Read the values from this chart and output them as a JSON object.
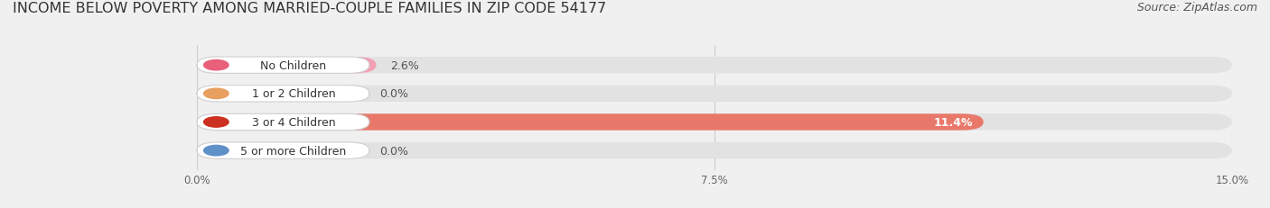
{
  "title": "INCOME BELOW POVERTY AMONG MARRIED-COUPLE FAMILIES IN ZIP CODE 54177",
  "source": "Source: ZipAtlas.com",
  "categories": [
    "No Children",
    "1 or 2 Children",
    "3 or 4 Children",
    "5 or more Children"
  ],
  "values": [
    2.6,
    0.0,
    11.4,
    0.0
  ],
  "bar_colors": [
    "#f4a0b4",
    "#f5c896",
    "#e8796a",
    "#a8c4e0"
  ],
  "dot_colors": [
    "#e8607a",
    "#e8a060",
    "#cc3020",
    "#6090c8"
  ],
  "xlim": [
    0,
    15.0
  ],
  "xticks": [
    0.0,
    7.5,
    15.0
  ],
  "xticklabels": [
    "0.0%",
    "7.5%",
    "15.0%"
  ],
  "background_color": "#f0f0f0",
  "bar_background_color": "#e2e2e2",
  "title_fontsize": 11.5,
  "source_fontsize": 9,
  "label_fontsize": 9,
  "value_fontsize": 9
}
